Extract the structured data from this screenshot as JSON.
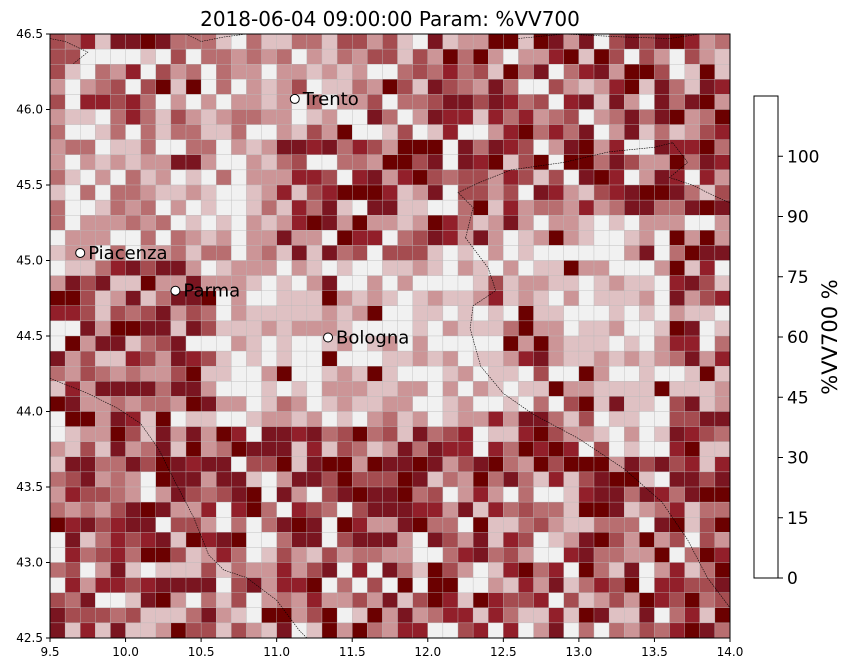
{
  "title": "2018-06-04 09:00:00 Param: %VV700",
  "map": {
    "lon_range": [
      9.5,
      14.0
    ],
    "lat_range": [
      42.5,
      46.5
    ],
    "x_ticks": [
      "9.5",
      "10.0",
      "10.5",
      "11.0",
      "11.5",
      "12.0",
      "12.5",
      "13.0",
      "13.5",
      "14.0"
    ],
    "y_ticks": [
      "46.5",
      "46.0",
      "45.5",
      "45.0",
      "44.5",
      "44.0",
      "43.5",
      "43.0",
      "42.5"
    ],
    "grid_cols": 45,
    "grid_rows": 40
  },
  "cities": [
    {
      "name": "Trento",
      "lon": 11.12,
      "lat": 46.07
    },
    {
      "name": "Piacenza",
      "lon": 9.7,
      "lat": 45.05
    },
    {
      "name": "Parma",
      "lon": 10.33,
      "lat": 44.8
    },
    {
      "name": "Bologna",
      "lon": 11.34,
      "lat": 44.49
    }
  ],
  "colorbar": {
    "label": "%VV700  %",
    "ticks": [
      "0",
      "15",
      "30",
      "45",
      "60",
      "75",
      "90",
      "100"
    ],
    "bounds": [
      0,
      15,
      30,
      45,
      60,
      75,
      90,
      100
    ],
    "colors": [
      "#f1f1f1",
      "#dfc1c3",
      "#cc9597",
      "#b86e70",
      "#a54c50",
      "#921f2a",
      "#7a1520",
      "#6b0000"
    ]
  },
  "chart_data": {
    "type": "heatmap",
    "title": "2018-06-04 09:00:00 Param: %VV700",
    "xlim": [
      9.5,
      14.0
    ],
    "ylim": [
      42.5,
      46.5
    ],
    "colorbar_label": "%VV700  %",
    "color_bounds": [
      0,
      15,
      30,
      45,
      60,
      75,
      90,
      100
    ],
    "points": [
      {
        "label": "Trento",
        "x": 11.12,
        "y": 46.07
      },
      {
        "label": "Piacenza",
        "x": 9.7,
        "y": 45.05
      },
      {
        "label": "Parma",
        "x": 10.33,
        "y": 44.8
      },
      {
        "label": "Bologna",
        "x": 11.34,
        "y": 44.49
      }
    ]
  }
}
